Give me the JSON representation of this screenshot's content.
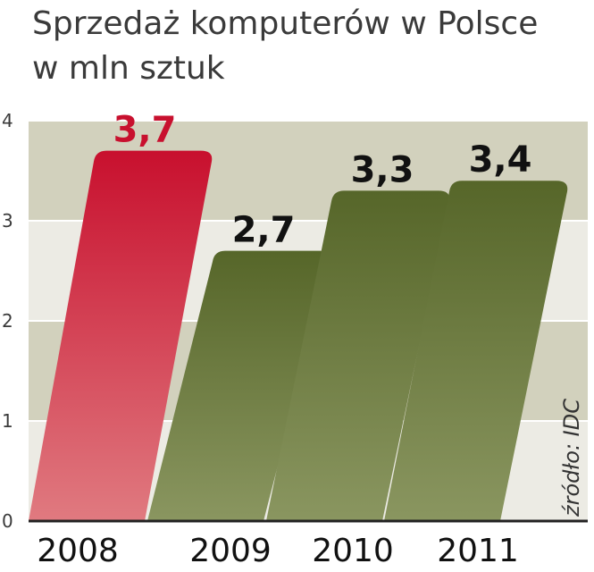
{
  "chart_data": {
    "type": "bar",
    "title": "Sprzedaż komputerów w Polsce",
    "subtitle": "w mln sztuk",
    "source": "źródło: IDC",
    "categories": [
      "2008",
      "2009",
      "2010",
      "2011"
    ],
    "values": [
      3.7,
      2.7,
      3.3,
      3.4
    ],
    "value_labels": [
      "3,7",
      "2,7",
      "3,3",
      "3,4"
    ],
    "y_ticks": [
      "0",
      "1",
      "2",
      "3",
      "4"
    ],
    "ylim": [
      0,
      4
    ],
    "grid": true,
    "highlight_index": 0,
    "colors": {
      "highlight_top": "#c8102e",
      "highlight_bottom": "#e07a80",
      "bar_top": "#566629",
      "bar_bottom": "#8a9660",
      "band_dark": "#d2d1bd",
      "band_light": "#ecebe4",
      "highlight_label": "#c8102e",
      "label": "#111111"
    }
  }
}
